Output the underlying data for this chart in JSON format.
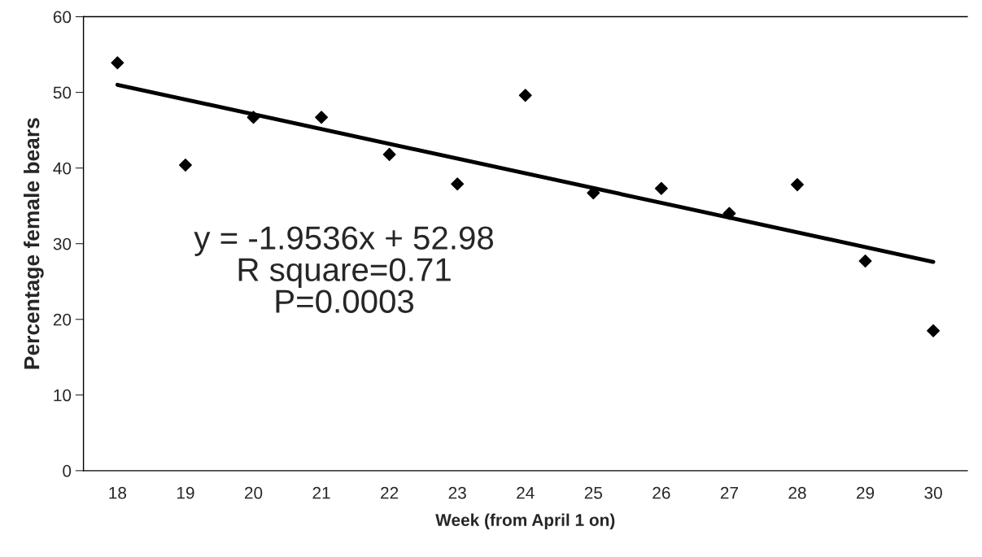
{
  "chart_data": {
    "type": "scatter",
    "xlabel": "Week (from April 1 on)",
    "ylabel": "Percentage female bears",
    "categories": [
      "18",
      "19",
      "20",
      "21",
      "22",
      "23",
      "24",
      "25",
      "26",
      "27",
      "28",
      "29",
      "30"
    ],
    "series": [
      {
        "color": "#000000",
        "marker": "diamond",
        "values": [
          53.9,
          40.4,
          46.7,
          46.7,
          41.8,
          37.9,
          49.6,
          36.7,
          37.3,
          34.0,
          37.8,
          27.7,
          18.5
        ]
      },
      {
        "type": "line",
        "color": "#000000",
        "line_style": "solid",
        "x": [
          "18",
          "30"
        ],
        "values": [
          51.0,
          27.6
        ]
      }
    ],
    "ylim": [
      0,
      60
    ],
    "yticks": [
      0,
      10,
      20,
      30,
      40,
      50,
      60
    ],
    "grid": false,
    "legend": false,
    "annotations": [
      "y = -1.9536x + 52.98\nR square=0.71\nP=0.0003"
    ]
  }
}
